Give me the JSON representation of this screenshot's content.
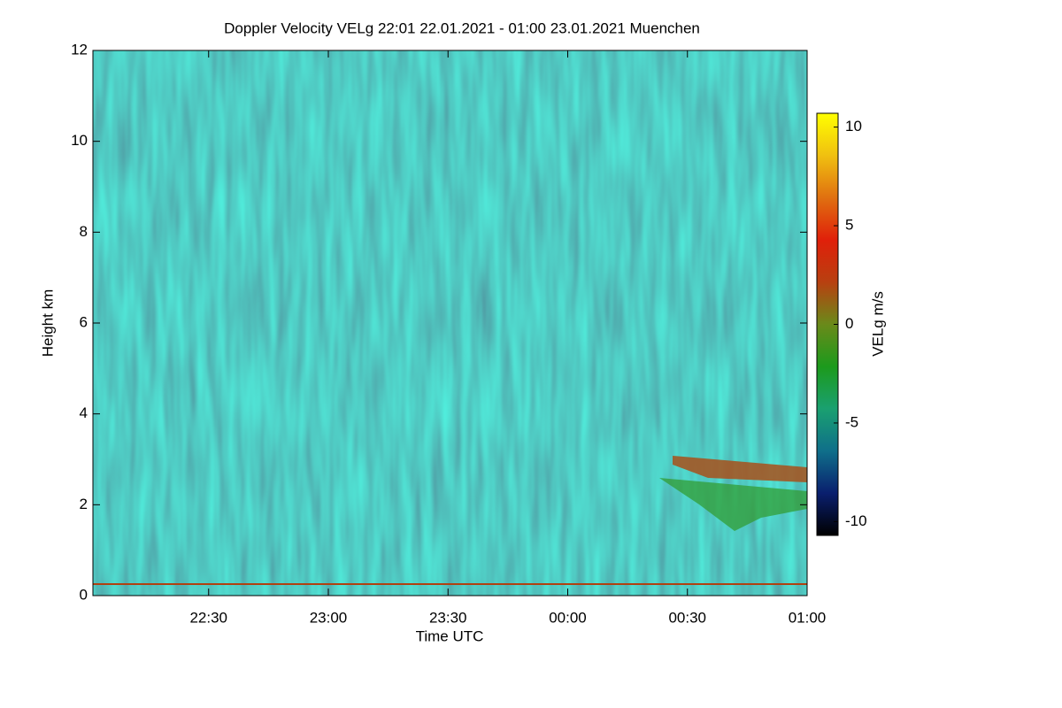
{
  "chart_data": {
    "type": "heatmap",
    "title": "Doppler Velocity VELg   22:01 22.01.2021 - 01:00 23.01.2021 Muenchen",
    "xlabel": "Time UTC",
    "ylabel": "Height km",
    "xlim": [
      1,
      180
    ],
    "xticks": [
      {
        "value": 30,
        "label": "22:30"
      },
      {
        "value": 60,
        "label": "23:00"
      },
      {
        "value": 90,
        "label": "23:30"
      },
      {
        "value": 120,
        "label": "00:00"
      },
      {
        "value": 150,
        "label": "00:30"
      },
      {
        "value": 180,
        "label": "01:00"
      }
    ],
    "ylim": [
      0,
      12
    ],
    "yticks": [
      0,
      2,
      4,
      6,
      8,
      10,
      12
    ],
    "colorbar": {
      "label": "VELg m/s",
      "clim": [
        -10.7,
        10.7
      ],
      "ticks": [
        -10,
        -5,
        0,
        5,
        10
      ],
      "colors": [
        "#000000",
        "#0a1f6e",
        "#0f6f8a",
        "#1aa070",
        "#1c9a1c",
        "#6a8a1a",
        "#b84010",
        "#e0200a",
        "#e07010",
        "#f0c010",
        "#ffff00"
      ]
    }
  }
}
